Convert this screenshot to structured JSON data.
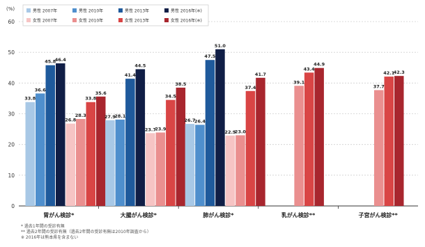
{
  "chart_data": {
    "type": "bar",
    "title": "",
    "ylabel": "(%)",
    "xlabel": "",
    "ylim": [
      0,
      60
    ],
    "yticks": [
      0,
      10,
      20,
      30,
      40,
      50,
      60
    ],
    "grid": true,
    "legend_position": "top-left",
    "categories": [
      "胃がん検診*",
      "大腸がん検診*",
      "肺がん検診*",
      "乳がん検診**",
      "子宮がん検診**"
    ],
    "series": [
      {
        "name": "男性 2007年",
        "color": "#a8c8e6",
        "values": [
          33.8,
          27.9,
          26.7,
          null,
          null
        ]
      },
      {
        "name": "男性 2010年",
        "color": "#4f8fcd",
        "values": [
          36.6,
          28.1,
          26.4,
          null,
          null
        ]
      },
      {
        "name": "男性 2013年",
        "color": "#1f5a9c",
        "values": [
          45.8,
          41.4,
          47.5,
          null,
          null
        ]
      },
      {
        "name": "男性 2016年(※)",
        "color": "#101e46",
        "values": [
          46.4,
          44.5,
          51.0,
          null,
          null
        ]
      },
      {
        "name": "女性 2007年",
        "color": "#f6c4c4",
        "values": [
          26.8,
          23.7,
          22.9,
          null,
          null
        ]
      },
      {
        "name": "女性 2010年",
        "color": "#ea8f8f",
        "values": [
          28.3,
          23.9,
          23.0,
          39.1,
          37.7
        ]
      },
      {
        "name": "女性 2013年",
        "color": "#d94545",
        "values": [
          33.8,
          34.5,
          37.4,
          43.4,
          42.1
        ]
      },
      {
        "name": "女性 2016年(※)",
        "color": "#a8262e",
        "values": [
          35.6,
          38.5,
          41.7,
          44.9,
          42.3
        ]
      }
    ]
  },
  "notes": [
    "*   過去1年間の受診有無",
    "**  過去2年間の受診有無（過去2年間の受診有無は2010年調査から）",
    "※  2016年は熊本県を含まない"
  ]
}
